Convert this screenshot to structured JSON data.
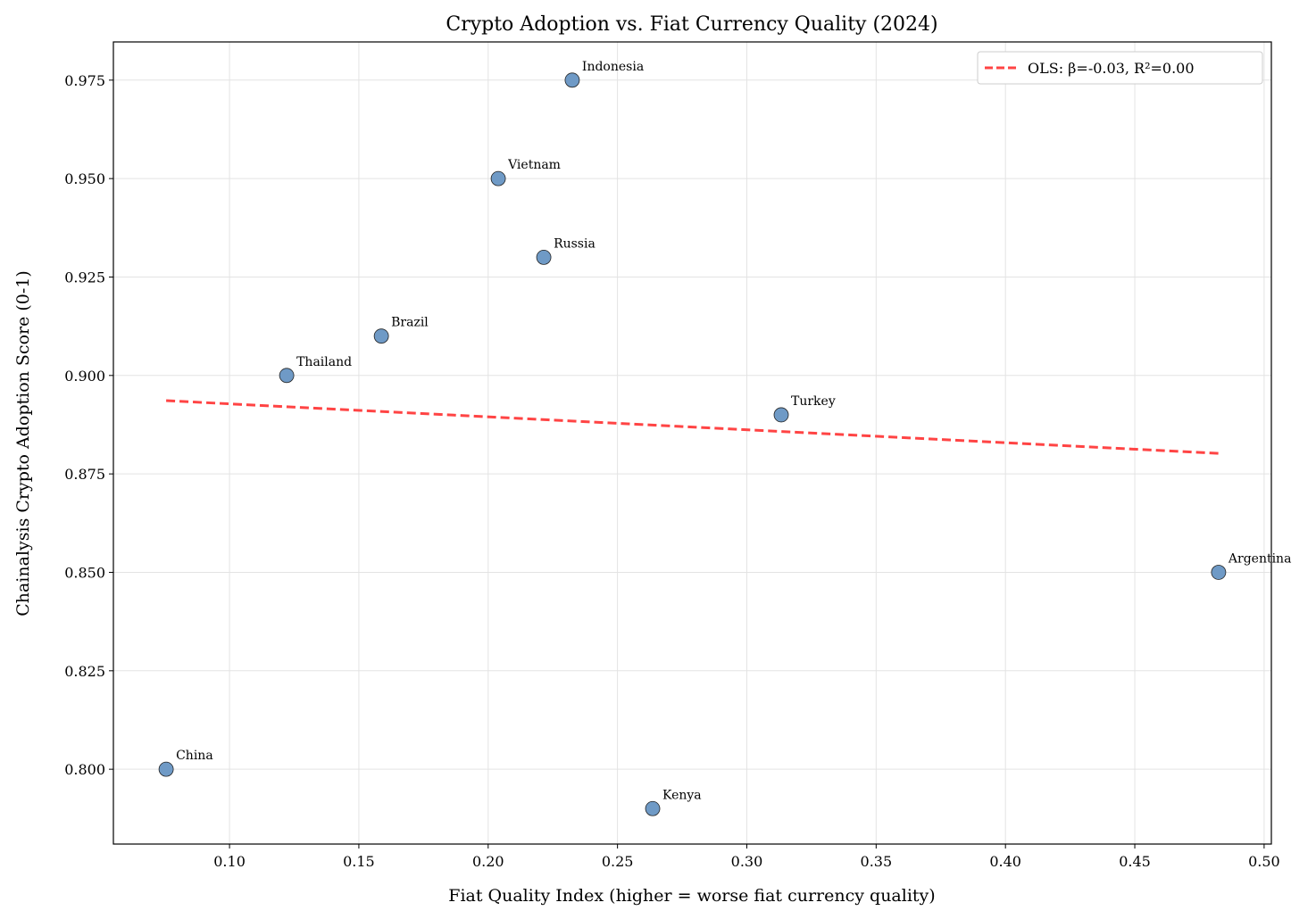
{
  "chart_data": {
    "type": "scatter",
    "title": "Crypto Adoption vs. Fiat Currency Quality (2024)",
    "xlabel": "Fiat Quality Index (higher = worse fiat currency quality)",
    "ylabel": "Chainalysis Crypto Adoption Score (0-1)",
    "xlim": [
      0.0551,
      0.5028
    ],
    "ylim": [
      0.781,
      0.9847
    ],
    "xticks": [
      0.1,
      0.15,
      0.2,
      0.25,
      0.3,
      0.35,
      0.4,
      0.45,
      0.5
    ],
    "xtick_labels": [
      "0.10",
      "0.15",
      "0.20",
      "0.25",
      "0.30",
      "0.35",
      "0.40",
      "0.45",
      "0.50"
    ],
    "yticks": [
      0.8,
      0.825,
      0.85,
      0.875,
      0.9,
      0.925,
      0.95,
      0.975
    ],
    "ytick_labels": [
      "0.800",
      "0.825",
      "0.850",
      "0.875",
      "0.900",
      "0.925",
      "0.950",
      "0.975"
    ],
    "grid": true,
    "points": [
      {
        "label": "Indonesia",
        "x": 0.2325,
        "y": 0.975
      },
      {
        "label": "Vietnam",
        "x": 0.2039,
        "y": 0.95
      },
      {
        "label": "Russia",
        "x": 0.2215,
        "y": 0.93
      },
      {
        "label": "Brazil",
        "x": 0.1587,
        "y": 0.91
      },
      {
        "label": "Thailand",
        "x": 0.1221,
        "y": 0.9
      },
      {
        "label": "Turkey",
        "x": 0.3133,
        "y": 0.89
      },
      {
        "label": "Argentina",
        "x": 0.4824,
        "y": 0.85
      },
      {
        "label": "China",
        "x": 0.0755,
        "y": 0.8
      },
      {
        "label": "Kenya",
        "x": 0.2636,
        "y": 0.79
      }
    ],
    "fit_line": {
      "name": "OLS: β=-0.03, R²=0.00",
      "x": [
        0.0755,
        0.4824
      ],
      "y": [
        0.8936,
        0.8802
      ],
      "color": "#ff4444",
      "style": "dashed"
    },
    "point_color": "#6f9ac6",
    "legend_position": "top-right"
  }
}
